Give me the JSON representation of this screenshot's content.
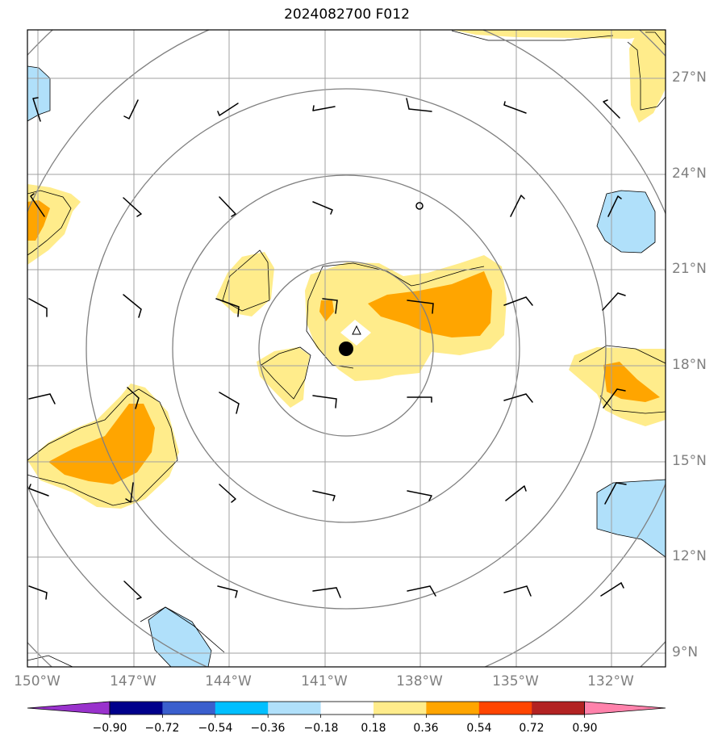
{
  "title": "2024082700 F012",
  "map": {
    "lat_labels": [
      "27°N",
      "24°N",
      "21°N",
      "18°N",
      "15°N",
      "12°N",
      "9°N"
    ],
    "lon_labels": [
      "150°W",
      "147°W",
      "144°W",
      "141°W",
      "138°W",
      "135°W",
      "132°W"
    ],
    "lon_range": [
      -150.3,
      -130.5
    ],
    "lat_range": [
      8.5,
      28.5
    ],
    "storm_center": {
      "lon": -140.35,
      "lat": 18.5
    },
    "grid_color": "#a0a0a0",
    "range_ring_color": "#808080"
  },
  "colorbar": {
    "labels": [
      "−0.90",
      "−0.72",
      "−0.54",
      "−0.36",
      "−0.18",
      "0.18",
      "0.36",
      "0.54",
      "0.72",
      "0.90"
    ],
    "colors": [
      "#9932cc",
      "#00008b",
      "#3a5fcd",
      "#00bfff",
      "#b0e0fa",
      "#ffffff",
      "#ffec8b",
      "#ffa500",
      "#ff4500",
      "#b22222",
      "#ff82ab"
    ]
  }
}
